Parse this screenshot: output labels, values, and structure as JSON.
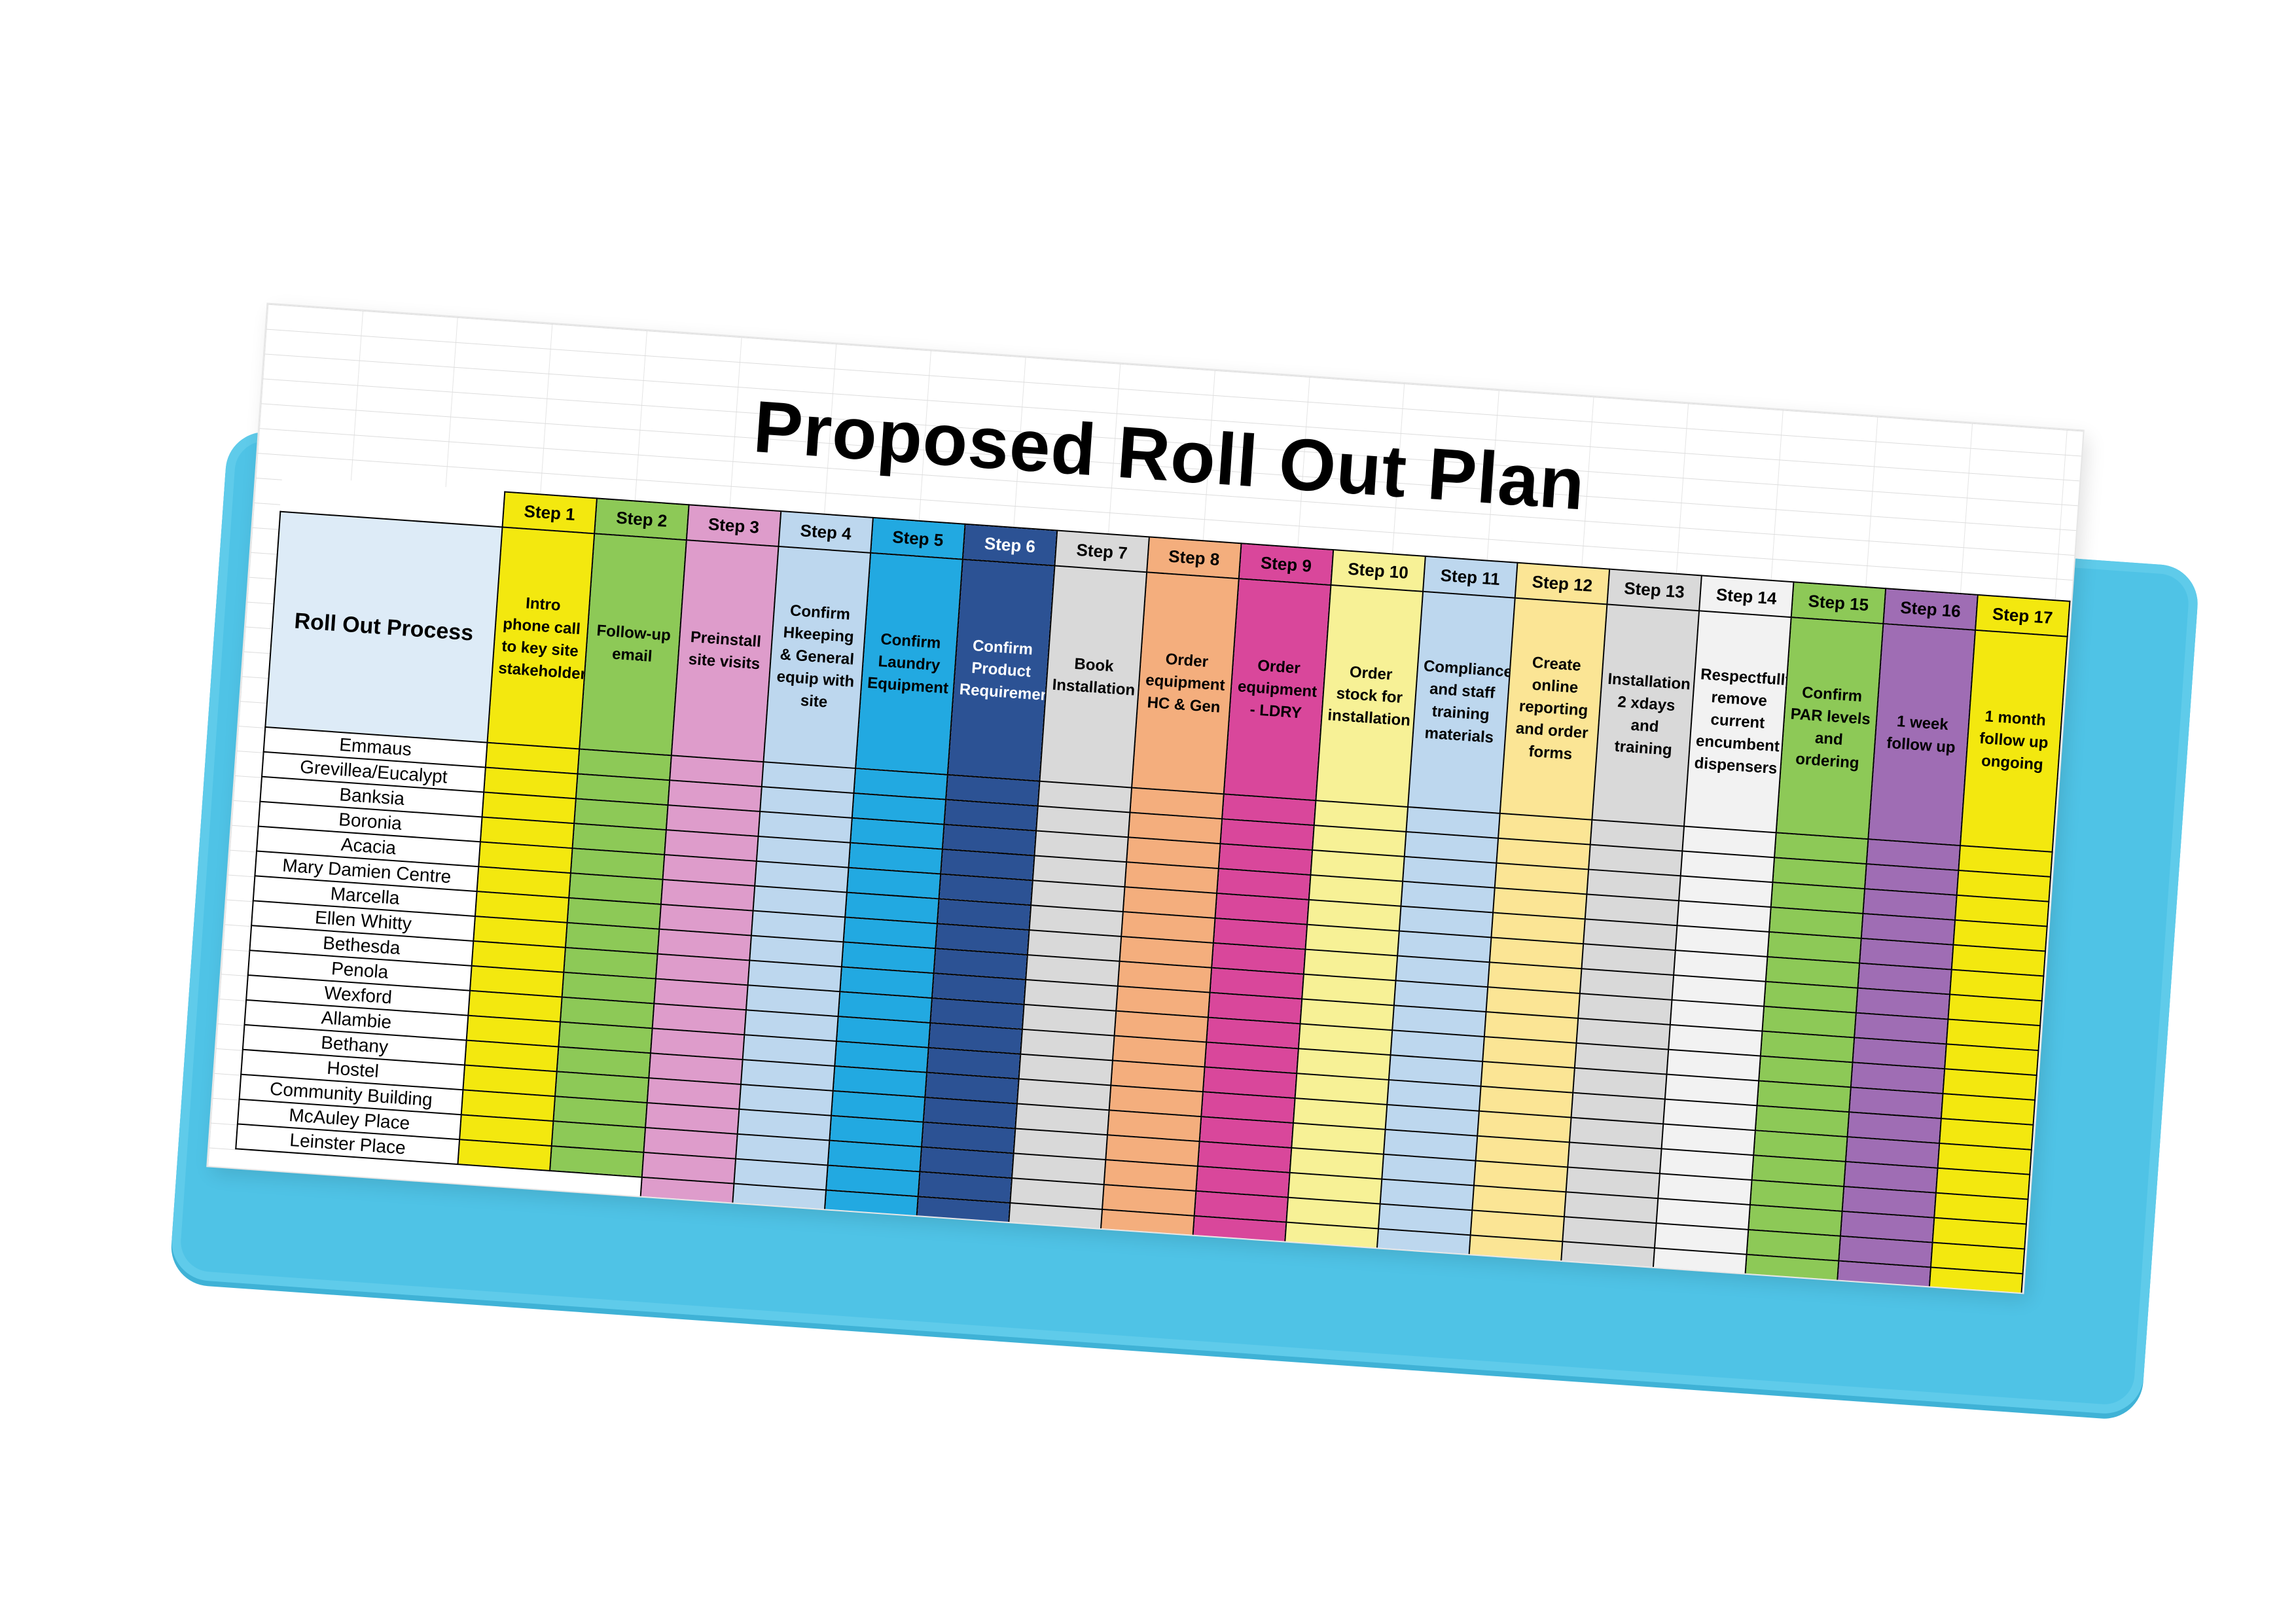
{
  "title": "Proposed Roll Out Plan",
  "table": {
    "row_header_label": "Roll Out Process",
    "steps": [
      {
        "label": "Step 1",
        "description": "Intro phone call to key site stakeholders",
        "color": "#f3e80f",
        "text_color": "#000000"
      },
      {
        "label": "Step 2",
        "description": "Follow-up email",
        "color": "#8dc957",
        "text_color": "#000000"
      },
      {
        "label": "Step 3",
        "description": "Preinstall site visits",
        "color": "#de9ccb",
        "text_color": "#000000"
      },
      {
        "label": "Step 4",
        "description": "Confirm Hkeeping & General equip with site",
        "color": "#bdd7ee",
        "text_color": "#000000"
      },
      {
        "label": "Step 5",
        "description": "Confirm Laundry Equipment",
        "color": "#22a9e1",
        "text_color": "#000000"
      },
      {
        "label": "Step 6",
        "description": "Confirm Product Requirements",
        "color": "#2c5294",
        "text_color": "#ffffff"
      },
      {
        "label": "Step 7",
        "description": "Book Installation",
        "color": "#d9d9d9",
        "text_color": "#000000"
      },
      {
        "label": "Step 8",
        "description": "Order equipment HC & Gen",
        "color": "#f4ae7d",
        "text_color": "#000000"
      },
      {
        "label": "Step 9",
        "description": "Order equipment - LDRY",
        "color": "#d9479b",
        "text_color": "#000000"
      },
      {
        "label": "Step 10",
        "description": "Order stock for installation",
        "color": "#f7f196",
        "text_color": "#000000"
      },
      {
        "label": "Step 11",
        "description": "Compliance and staff training materials",
        "color": "#bdd7ee",
        "text_color": "#000000"
      },
      {
        "label": "Step 12",
        "description": "Create online reporting and order forms",
        "color": "#fbe595",
        "text_color": "#000000"
      },
      {
        "label": "Step 13",
        "description": "Installation 2 xdays and training",
        "color": "#d9d9d9",
        "text_color": "#000000"
      },
      {
        "label": "Step 14",
        "description": "Respectfully remove current encumbent dispensers",
        "color": "#f2f2f2",
        "text_color": "#000000"
      },
      {
        "label": "Step 15",
        "description": "Confirm PAR levels and ordering",
        "color": "#8dc957",
        "text_color": "#000000"
      },
      {
        "label": "Step 16",
        "description": "1 week follow up",
        "color": "#9f6db4",
        "text_color": "#000000"
      },
      {
        "label": "Step 17",
        "description": "1 month follow up ongoing",
        "color": "#f3e80f",
        "text_color": "#000000"
      }
    ],
    "sites": [
      "Emmaus",
      "Grevillea/Eucalypt",
      "Banksia",
      "Boronia",
      "Acacia",
      "Mary Damien Centre",
      "Marcella",
      "Ellen Whitty",
      "Bethesda",
      "Penola",
      "Wexford",
      "Allambie",
      "Bethany",
      "Hostel",
      "Community Building",
      "McAuley Place",
      "Leinster Place"
    ]
  },
  "selected_cell": {
    "row": 21,
    "step": 17
  }
}
